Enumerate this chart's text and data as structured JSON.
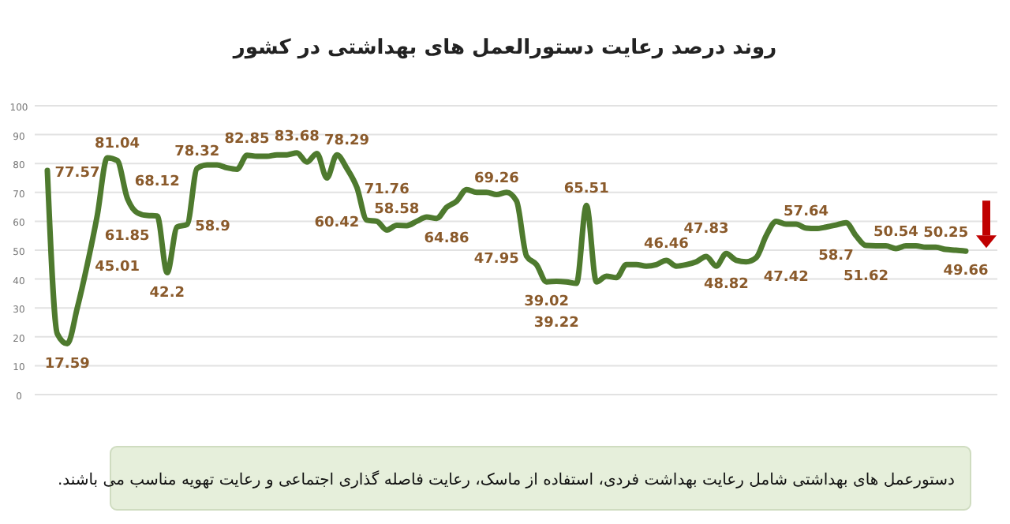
{
  "chart_data": {
    "type": "line",
    "title": "روند درصد رعایت دستورالعمل های بهداشتی در کشور",
    "categories": [
      null,
      null,
      null,
      null,
      null,
      null,
      null,
      null,
      null,
      null,
      null,
      null,
      null,
      null,
      null,
      null,
      null,
      null,
      null,
      null,
      null,
      null,
      null,
      null,
      null,
      null,
      null,
      null,
      null,
      null,
      null,
      null,
      null,
      null,
      null,
      null,
      null,
      null,
      null,
      null,
      null,
      null,
      null,
      null,
      null,
      null,
      null,
      null,
      null,
      null,
      null,
      null,
      null,
      null,
      null,
      null,
      null,
      null,
      null,
      null,
      null,
      null,
      null,
      null,
      null,
      null,
      null,
      null,
      null,
      null,
      null,
      null,
      null,
      null,
      null,
      null,
      null,
      null,
      null,
      null,
      null,
      null,
      null,
      null,
      null,
      null,
      null,
      null,
      null,
      null,
      null,
      null,
      null
    ],
    "series": [
      {
        "color": "#4e7a2e",
        "values": [
          77.57,
          21,
          17.59,
          30,
          45.01,
          62,
          82,
          81.04,
          68.12,
          63,
          62,
          61.85,
          42.2,
          58,
          58.9,
          78.32,
          79.5,
          79.5,
          78.5,
          78,
          82.85,
          82.5,
          82.5,
          83,
          83,
          83.68,
          80.5,
          83.5,
          75,
          83,
          78.29,
          71.76,
          60.42,
          60,
          57,
          58.58,
          58.5,
          60,
          61.5,
          61,
          64.86,
          67,
          71,
          70,
          70,
          69.26,
          70,
          67,
          47.95,
          45,
          39.02,
          39.22,
          39,
          38.5,
          65.51,
          39,
          41,
          40.5,
          45,
          45,
          44.5,
          45,
          46.46,
          44.5,
          45,
          46,
          47.83,
          44.5,
          48.82,
          46.5,
          46,
          47.42,
          55,
          60,
          59,
          59,
          57.64,
          57.5,
          58,
          58.7,
          59.5,
          55,
          51.62,
          51.5,
          51.5,
          50.54,
          51.5,
          51.5,
          51,
          51,
          50.25,
          50,
          49.66
        ],
        "value_labels": [
          "77.57",
          null,
          "17.59",
          null,
          "45.01",
          null,
          null,
          "81.04",
          "68.12",
          null,
          null,
          "61.85",
          "42.2",
          null,
          "58.9",
          "78.32",
          null,
          null,
          null,
          null,
          "82.85",
          null,
          null,
          null,
          null,
          "83.68",
          null,
          null,
          null,
          null,
          "78.29",
          "71.76",
          "60.42",
          null,
          null,
          "58.58",
          null,
          null,
          null,
          null,
          "64.86",
          null,
          null,
          null,
          null,
          "69.26",
          null,
          null,
          "47.95",
          null,
          "39.02",
          "39.22",
          null,
          null,
          "65.51",
          null,
          null,
          null,
          null,
          null,
          null,
          null,
          "46.46",
          null,
          null,
          null,
          "47.83",
          null,
          "48.82",
          null,
          null,
          "47.42",
          null,
          null,
          null,
          null,
          "57.64",
          null,
          null,
          "58.7",
          null,
          null,
          "51.62",
          null,
          null,
          "50.54",
          null,
          null,
          null,
          null,
          "50.25",
          null,
          "49.66"
        ]
      }
    ],
    "ylim": [
      0,
      100
    ],
    "yticks": [
      0,
      10,
      20,
      30,
      40,
      50,
      60,
      70,
      80,
      90,
      100
    ],
    "grid": "y",
    "marker": "none",
    "line_style": "solid",
    "annotations": [
      "دستورعمل های بهداشتی شامل رعایت بهداشت فردی، استفاده از ماسک، رعایت فاصله گذاری اجتماعی و رعایت تهویه مناسب می باشند."
    ]
  }
}
